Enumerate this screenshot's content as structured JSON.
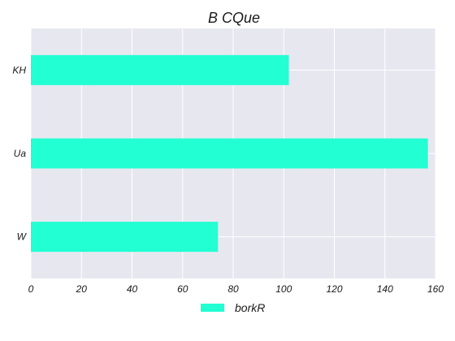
{
  "chart_data": {
    "type": "bar",
    "orientation": "horizontal",
    "title": "B CQue",
    "xlabel": "",
    "ylabel": "",
    "categories": [
      "KH",
      "Ua",
      "W"
    ],
    "series": [
      {
        "name": "borkR",
        "values": [
          102,
          157,
          74
        ]
      }
    ],
    "xlim": [
      0,
      160
    ],
    "xticks": [
      "0",
      "20",
      "40",
      "60",
      "80",
      "100",
      "120",
      "140",
      "160"
    ],
    "grid": true,
    "legend": "bottom-center",
    "colors": {
      "bar": "#22ffd2",
      "plot_bg": "#e7e7f0",
      "grid": "#ffffff"
    }
  }
}
